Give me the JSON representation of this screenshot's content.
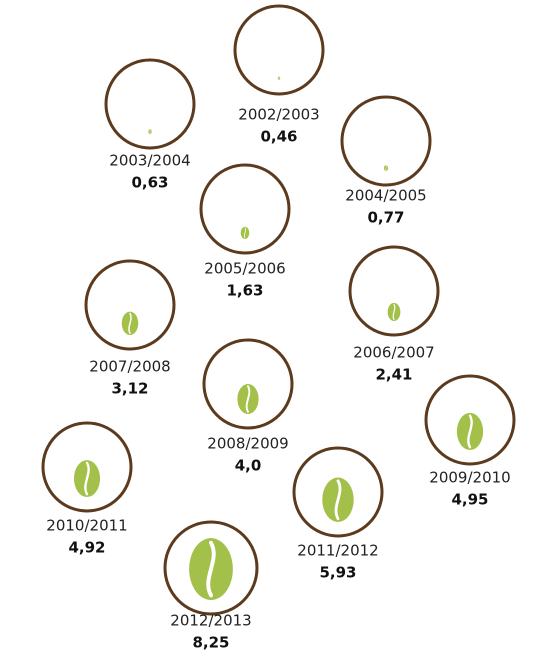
{
  "chart_data": {
    "type": "bean",
    "categories": [
      "2002/2003",
      "2003/2004",
      "2004/2005",
      "2005/2006",
      "2006/2007",
      "2007/2008",
      "2008/2009",
      "2009/2010",
      "2010/2011",
      "2011/2012",
      "2012/2013"
    ],
    "values": [
      0.46,
      0.63,
      0.77,
      1.63,
      2.41,
      3.12,
      4.0,
      4.95,
      4.92,
      5.93,
      8.25
    ],
    "value_labels": [
      "0,46",
      "0,63",
      "0,77",
      "1,63",
      "2,41",
      "3,12",
      "4,0",
      "4,95",
      "4,92",
      "5,93",
      "8,25"
    ],
    "color": "#a3c14a",
    "outline_color": "#5b3a1e"
  }
}
